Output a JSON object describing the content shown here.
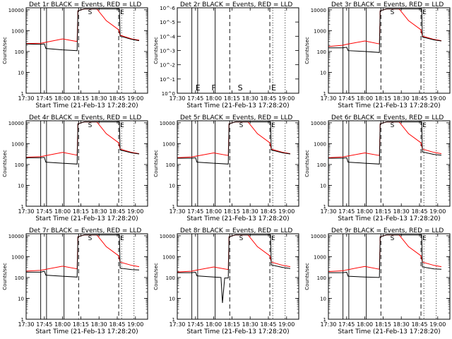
{
  "chart_data": [
    {
      "type": "line",
      "title": "Det 1r BLACK = Events, RED = LLD",
      "xlabel": "Start Time (21-Feb-13 17:28:20)",
      "ylabel": "Counts/sec",
      "y_scale": "log",
      "yticks": [
        "1",
        "10",
        "100",
        "1000",
        "10000"
      ],
      "xticks": [
        "17:30",
        "17:45",
        "18:00",
        "18:15",
        "18:30",
        "18:45",
        "19:00"
      ],
      "markers": [
        "S",
        "E"
      ],
      "series": [
        {
          "name": "BLACK = Events",
          "color": "#000000",
          "x": [
            17.47,
            17.7,
            17.75,
            17.77,
            18.0,
            18.2,
            18.21,
            18.3,
            18.4,
            18.47,
            18.6,
            18.77,
            18.78,
            18.79,
            18.95,
            19.05
          ],
          "y": [
            230,
            220,
            230,
            140,
            120,
            110,
            9000,
            11000,
            11000,
            11000,
            11000,
            11000,
            11000,
            550,
            380,
            330
          ]
        },
        {
          "name": "RED = LLD",
          "color": "#ff0000",
          "x": [
            17.47,
            17.7,
            17.75,
            18.0,
            18.2,
            18.21,
            18.3,
            18.4,
            18.47,
            18.6,
            18.77,
            18.79,
            18.95,
            19.05
          ],
          "y": [
            240,
            250,
            270,
            400,
            300,
            9000,
            11000,
            11000,
            11000,
            3000,
            1100,
            600,
            400,
            350
          ]
        }
      ]
    },
    {
      "type": "line",
      "title": "Det 2r BLACK = Events, RED = LLD",
      "xlabel": "Start Time (21-Feb-13 17:28:20)",
      "ylabel": "Counts/sec",
      "y_scale": "log",
      "yticks": [
        "10^0",
        "10^-1",
        "10^-2",
        "10^-3",
        "10^-4",
        "10^-5",
        "10^-6"
      ],
      "xticks": [
        "17:30",
        "17:45",
        "18:00",
        "18:15",
        "18:30",
        "18:45",
        "19:00"
      ],
      "markers": [
        "E",
        "F",
        "S",
        "E"
      ],
      "series": []
    },
    {
      "type": "line",
      "title": "Det 3r BLACK = Events, RED = LLD",
      "xlabel": "Start Time (21-Feb-13 17:28:20)",
      "ylabel": "Counts/sec",
      "y_scale": "log",
      "yticks": [
        "1",
        "10",
        "100",
        "1000",
        "10000"
      ],
      "xticks": [
        "17:30",
        "17:45",
        "18:00",
        "18:15",
        "18:30",
        "18:45",
        "19:00"
      ],
      "markers": [
        "S",
        "E"
      ],
      "series": [
        {
          "name": "BLACK = Events",
          "color": "#000000",
          "x": [
            17.47,
            17.7,
            17.75,
            17.77,
            18.0,
            18.2,
            18.21,
            18.3,
            18.4,
            18.47,
            18.6,
            18.77,
            18.78,
            18.79,
            18.95,
            19.05
          ],
          "y": [
            150,
            150,
            160,
            110,
            100,
            90,
            9000,
            11000,
            11000,
            11000,
            11000,
            11000,
            11000,
            500,
            360,
            320
          ]
        },
        {
          "name": "RED = LLD",
          "color": "#ff0000",
          "x": [
            17.47,
            17.7,
            17.75,
            18.0,
            18.2,
            18.21,
            18.3,
            18.4,
            18.47,
            18.6,
            18.77,
            18.79,
            18.95,
            19.05
          ],
          "y": [
            170,
            200,
            220,
            320,
            230,
            9000,
            11000,
            11000,
            11000,
            3000,
            1100,
            550,
            380,
            330
          ]
        }
      ]
    },
    {
      "type": "line",
      "title": "Det 4r BLACK = Events, RED = LLD",
      "xlabel": "Start Time (21-Feb-13 17:28:20)",
      "ylabel": "Counts/sec",
      "y_scale": "log",
      "yticks": [
        "1",
        "10",
        "100",
        "1000",
        "10000"
      ],
      "xticks": [
        "17:30",
        "17:45",
        "18:00",
        "18:15",
        "18:30",
        "18:45",
        "19:00"
      ],
      "markers": [
        "S",
        "E"
      ],
      "series": [
        {
          "name": "BLACK = Events",
          "color": "#000000",
          "x": [
            17.47,
            17.7,
            17.75,
            17.77,
            18.0,
            18.2,
            18.21,
            18.3,
            18.4,
            18.47,
            18.6,
            18.77,
            18.78,
            18.79,
            18.95,
            19.05
          ],
          "y": [
            210,
            210,
            220,
            130,
            115,
            105,
            9000,
            11000,
            11000,
            11000,
            11000,
            11000,
            11000,
            500,
            360,
            320
          ]
        },
        {
          "name": "RED = LLD",
          "color": "#ff0000",
          "x": [
            17.47,
            17.7,
            17.75,
            18.0,
            18.2,
            18.21,
            18.3,
            18.4,
            18.47,
            18.6,
            18.77,
            18.79,
            18.95,
            19.05
          ],
          "y": [
            220,
            240,
            260,
            380,
            280,
            9000,
            11000,
            11000,
            11000,
            3000,
            1100,
            550,
            380,
            330
          ]
        }
      ]
    },
    {
      "type": "line",
      "title": "Det 5r BLACK = Events, RED = LLD",
      "xlabel": "Start Time (21-Feb-13 17:28:20)",
      "ylabel": "Counts/sec",
      "y_scale": "log",
      "yticks": [
        "1",
        "10",
        "100",
        "1000",
        "10000"
      ],
      "xticks": [
        "17:30",
        "17:45",
        "18:00",
        "18:15",
        "18:30",
        "18:45",
        "19:00"
      ],
      "markers": [
        "S",
        "E"
      ],
      "series": [
        {
          "name": "BLACK = Events",
          "color": "#000000",
          "x": [
            17.47,
            17.7,
            17.75,
            17.77,
            18.0,
            18.2,
            18.21,
            18.3,
            18.4,
            18.47,
            18.6,
            18.77,
            18.78,
            18.79,
            18.95,
            19.05
          ],
          "y": [
            200,
            200,
            210,
            130,
            115,
            105,
            9000,
            11000,
            11000,
            11000,
            11000,
            11000,
            11000,
            500,
            360,
            320
          ]
        },
        {
          "name": "RED = LLD",
          "color": "#ff0000",
          "x": [
            17.47,
            17.7,
            17.75,
            18.0,
            18.2,
            18.21,
            18.3,
            18.4,
            18.47,
            18.6,
            18.77,
            18.79,
            18.95,
            19.05
          ],
          "y": [
            210,
            230,
            250,
            360,
            270,
            9000,
            11000,
            11000,
            11000,
            3000,
            1100,
            550,
            380,
            330
          ]
        }
      ]
    },
    {
      "type": "line",
      "title": "Det 6r BLACK = Events, RED = LLD",
      "xlabel": "Start Time (21-Feb-13 17:28:20)",
      "ylabel": "Counts/sec",
      "y_scale": "log",
      "yticks": [
        "1",
        "10",
        "100",
        "1000",
        "10000"
      ],
      "xticks": [
        "17:30",
        "17:45",
        "18:00",
        "18:15",
        "18:30",
        "18:45",
        "19:00"
      ],
      "markers": [
        "S",
        "E"
      ],
      "series": [
        {
          "name": "BLACK = Events",
          "color": "#000000",
          "x": [
            17.47,
            17.7,
            17.75,
            17.77,
            18.0,
            18.2,
            18.21,
            18.3,
            18.4,
            18.47,
            18.6,
            18.77,
            18.78,
            18.79,
            18.95,
            19.05
          ],
          "y": [
            200,
            200,
            210,
            130,
            115,
            105,
            9000,
            11000,
            11000,
            11000,
            11000,
            11000,
            11000,
            400,
            300,
            280
          ]
        },
        {
          "name": "RED = LLD",
          "color": "#ff0000",
          "x": [
            17.47,
            17.7,
            17.75,
            18.0,
            18.2,
            18.21,
            18.3,
            18.4,
            18.47,
            18.6,
            18.77,
            18.79,
            18.95,
            19.05
          ],
          "y": [
            210,
            230,
            250,
            360,
            270,
            9000,
            11000,
            11000,
            11000,
            3000,
            1100,
            550,
            380,
            330
          ]
        }
      ]
    },
    {
      "type": "line",
      "title": "Det 7r BLACK = Events, RED = LLD",
      "xlabel": "Start Time (21-Feb-13 17:28:20)",
      "ylabel": "Counts/sec",
      "y_scale": "log",
      "yticks": [
        "1",
        "10",
        "100",
        "1000",
        "10000"
      ],
      "xticks": [
        "17:30",
        "17:45",
        "18:00",
        "18:15",
        "18:30",
        "18:45",
        "19:00"
      ],
      "markers": [
        "S",
        "E"
      ],
      "series": [
        {
          "name": "BLACK = Events",
          "color": "#000000",
          "x": [
            17.47,
            17.7,
            17.75,
            17.77,
            18.0,
            18.2,
            18.21,
            18.3,
            18.4,
            18.47,
            18.6,
            18.77,
            18.78,
            18.79,
            18.95,
            19.05
          ],
          "y": [
            180,
            180,
            200,
            130,
            115,
            105,
            9000,
            11000,
            11000,
            11000,
            11000,
            11000,
            11000,
            280,
            240,
            230
          ]
        },
        {
          "name": "RED = LLD",
          "color": "#ff0000",
          "x": [
            17.47,
            17.7,
            17.75,
            18.0,
            18.2,
            18.21,
            18.3,
            18.4,
            18.47,
            18.6,
            18.77,
            18.79,
            18.95,
            19.05
          ],
          "y": [
            200,
            220,
            240,
            350,
            260,
            9000,
            11000,
            11000,
            11000,
            3000,
            1100,
            550,
            380,
            330
          ]
        }
      ]
    },
    {
      "type": "line",
      "title": "Det 8r BLACK = Events, RED = LLD",
      "xlabel": "Start Time (21-Feb-13 17:28:20)",
      "ylabel": "Counts/sec",
      "y_scale": "log",
      "yticks": [
        "1",
        "10",
        "100",
        "1000",
        "10000"
      ],
      "xticks": [
        "17:30",
        "17:45",
        "18:00",
        "18:15",
        "18:30",
        "18:45",
        "19:00"
      ],
      "markers": [
        "S",
        "E"
      ],
      "series": [
        {
          "name": "BLACK = Events",
          "color": "#000000",
          "x": [
            17.47,
            17.7,
            17.75,
            17.77,
            18.0,
            18.1,
            18.12,
            18.15,
            18.2,
            18.21,
            18.3,
            18.4,
            18.47,
            18.6,
            18.77,
            18.78,
            18.79,
            18.95,
            19.05
          ],
          "y": [
            170,
            170,
            180,
            120,
            105,
            100,
            6,
            95,
            95,
            9000,
            11000,
            11000,
            11000,
            11000,
            11000,
            11000,
            400,
            300,
            270
          ]
        },
        {
          "name": "RED = LLD",
          "color": "#ff0000",
          "x": [
            17.47,
            17.7,
            17.75,
            18.0,
            18.2,
            18.21,
            18.3,
            18.4,
            18.47,
            18.6,
            18.77,
            18.79,
            18.95,
            19.05
          ],
          "y": [
            180,
            200,
            220,
            320,
            240,
            9000,
            11000,
            11000,
            11000,
            3000,
            1100,
            550,
            380,
            330
          ]
        }
      ]
    },
    {
      "type": "line",
      "title": "Det 9r BLACK = Events, RED = LLD",
      "xlabel": "Start Time (21-Feb-13 17:28:20)",
      "ylabel": "Counts/sec",
      "y_scale": "log",
      "yticks": [
        "1",
        "10",
        "100",
        "1000",
        "10000"
      ],
      "xticks": [
        "17:30",
        "17:45",
        "18:00",
        "18:15",
        "18:30",
        "18:45",
        "19:00"
      ],
      "markers": [
        "S",
        "E"
      ],
      "series": [
        {
          "name": "BLACK = Events",
          "color": "#000000",
          "x": [
            17.47,
            17.7,
            17.75,
            17.77,
            18.0,
            18.2,
            18.21,
            18.3,
            18.4,
            18.47,
            18.6,
            18.77,
            18.78,
            18.79,
            18.95,
            19.05
          ],
          "y": [
            170,
            170,
            180,
            115,
            105,
            100,
            9000,
            11000,
            11000,
            11000,
            11000,
            11000,
            11000,
            320,
            260,
            250
          ]
        },
        {
          "name": "RED = LLD",
          "color": "#ff0000",
          "x": [
            17.47,
            17.7,
            17.75,
            18.0,
            18.2,
            18.21,
            18.3,
            18.4,
            18.47,
            18.6,
            18.77,
            18.79,
            18.95,
            19.05
          ],
          "y": [
            190,
            210,
            230,
            340,
            250,
            9000,
            11000,
            11000,
            11000,
            3000,
            1100,
            550,
            380,
            330
          ]
        }
      ]
    }
  ]
}
